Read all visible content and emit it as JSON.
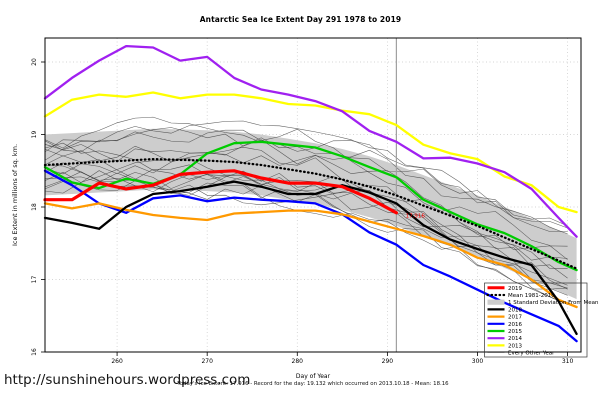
{
  "title": "Antarctic Sea Ice Extent Day 291 1978 to 2019",
  "url_watermark": "http://sunshinehours.wordpress.com",
  "caption": "Today's Ice Extent: 17.916  - Record for the day: 19.132 which occurred on 2013.10.18  - Mean: 18.16",
  "chart_data": {
    "type": "line",
    "title": "Antarctic Sea Ice Extent Day 291 1978 to 2019",
    "xlabel": "Day of Year",
    "ylabel": "Ice Extent in millions of sq. km.",
    "xlim": [
      252,
      311.5
    ],
    "ylim": [
      16,
      20.33
    ],
    "xticks": [
      260,
      270,
      280,
      290,
      300,
      310
    ],
    "yticks": [
      16,
      17,
      18,
      19,
      20
    ],
    "grid": "dotted",
    "marker_line": {
      "x": 291,
      "color": "#a0a0a0"
    },
    "annotation": {
      "label": "17.916",
      "x": 291.8,
      "y_value": 17.88,
      "color": "#ff0000"
    },
    "x": [
      252,
      255,
      258,
      261,
      264,
      267,
      270,
      273,
      276,
      279,
      282,
      285,
      288,
      291,
      294,
      297,
      300,
      303,
      306,
      309,
      311
    ],
    "band": {
      "name": "1 Standard Deviation From Mean",
      "color": "#cdcdcd",
      "upper": [
        19.0,
        19.02,
        19.04,
        19.06,
        19.08,
        19.07,
        19.06,
        19.04,
        19.0,
        18.94,
        18.88,
        18.8,
        18.7,
        18.58,
        18.44,
        18.3,
        18.16,
        18.0,
        17.84,
        17.68,
        17.57
      ],
      "lower": [
        18.16,
        18.18,
        18.2,
        18.22,
        18.24,
        18.23,
        18.22,
        18.2,
        18.16,
        18.1,
        18.04,
        17.96,
        17.86,
        17.74,
        17.6,
        17.46,
        17.32,
        17.16,
        17.0,
        16.84,
        16.73
      ]
    },
    "background": {
      "name": "Every Other Year",
      "count": 16,
      "seed": 20131018,
      "color": "#3a3a3a",
      "width": 0.55
    },
    "series": [
      {
        "name": "2013",
        "color": "#ffff00",
        "width": 2.3,
        "values": [
          19.25,
          19.48,
          19.55,
          19.52,
          19.58,
          19.5,
          19.55,
          19.55,
          19.5,
          19.42,
          19.4,
          19.33,
          19.28,
          19.13,
          18.86,
          18.74,
          18.66,
          18.42,
          18.3,
          18.0,
          17.93
        ]
      },
      {
        "name": "2014",
        "color": "#a020f0",
        "width": 2.3,
        "values": [
          19.5,
          19.78,
          20.02,
          20.22,
          20.2,
          20.02,
          20.07,
          19.78,
          19.62,
          19.55,
          19.46,
          19.32,
          19.05,
          18.9,
          18.67,
          18.68,
          18.6,
          18.48,
          18.25,
          17.85,
          17.59
        ]
      },
      {
        "name": "2015",
        "color": "#00cc00",
        "width": 2.3,
        "values": [
          18.55,
          18.34,
          18.26,
          18.39,
          18.32,
          18.45,
          18.74,
          18.88,
          18.9,
          18.86,
          18.82,
          18.7,
          18.55,
          18.41,
          18.1,
          17.93,
          17.76,
          17.64,
          17.46,
          17.24,
          17.13
        ]
      },
      {
        "name": "2016",
        "color": "#0000ff",
        "width": 2.3,
        "values": [
          18.5,
          18.3,
          18.05,
          17.92,
          18.12,
          18.16,
          18.08,
          18.13,
          18.1,
          18.08,
          18.05,
          17.9,
          17.65,
          17.48,
          17.2,
          17.04,
          16.86,
          16.68,
          16.52,
          16.36,
          16.15
        ]
      },
      {
        "name": "2017",
        "color": "#ff9900",
        "width": 2.3,
        "values": [
          18.05,
          17.98,
          18.05,
          17.96,
          17.89,
          17.85,
          17.82,
          17.91,
          17.93,
          17.95,
          17.95,
          17.9,
          17.8,
          17.7,
          17.6,
          17.48,
          17.3,
          17.2,
          17.0,
          16.72,
          16.62
        ]
      },
      {
        "name": "2018",
        "color": "#000000",
        "width": 2.3,
        "values": [
          17.85,
          17.78,
          17.7,
          18.0,
          18.18,
          18.22,
          18.28,
          18.35,
          18.28,
          18.18,
          18.18,
          18.3,
          18.2,
          18.05,
          17.75,
          17.55,
          17.42,
          17.3,
          17.2,
          16.7,
          16.25
        ]
      },
      {
        "name": "Mean 1981-2010",
        "color": "#000000",
        "width": 2.3,
        "dash": "dotted",
        "values": [
          18.58,
          18.6,
          18.62,
          18.64,
          18.66,
          18.65,
          18.64,
          18.62,
          18.58,
          18.52,
          18.46,
          18.38,
          18.28,
          18.16,
          18.02,
          17.88,
          17.74,
          17.58,
          17.42,
          17.26,
          17.15
        ]
      },
      {
        "name": "2019",
        "color": "#ff0000",
        "width": 3.2,
        "values": [
          18.1,
          18.1,
          18.33,
          18.25,
          18.3,
          18.45,
          18.48,
          18.5,
          18.4,
          18.33,
          18.33,
          18.28,
          18.12,
          17.92
        ]
      }
    ],
    "legend": {
      "position": "bottom-right",
      "entries": [
        {
          "label": "2019",
          "swatch": "line",
          "color": "#ff0000",
          "width": 3
        },
        {
          "label": "Mean 1981-2010",
          "swatch": "dotted",
          "color": "#000000",
          "width": 2.2
        },
        {
          "label": "1 Standard Deviation From Mean",
          "swatch": "box",
          "color": "#cdcdcd"
        },
        {
          "label": "2018",
          "swatch": "line",
          "color": "#000000",
          "width": 2.2
        },
        {
          "label": "2017",
          "swatch": "line",
          "color": "#ff9900",
          "width": 2.2
        },
        {
          "label": "2016",
          "swatch": "line",
          "color": "#0000ff",
          "width": 2.2
        },
        {
          "label": "2015",
          "swatch": "line",
          "color": "#00cc00",
          "width": 2.2
        },
        {
          "label": "2014",
          "swatch": "line",
          "color": "#a020f0",
          "width": 2.2
        },
        {
          "label": "2013",
          "swatch": "line",
          "color": "#ffff00",
          "width": 2.2
        },
        {
          "label": "Every Other Year",
          "swatch": "line",
          "color": "#888888",
          "width": 0.8
        }
      ]
    }
  }
}
